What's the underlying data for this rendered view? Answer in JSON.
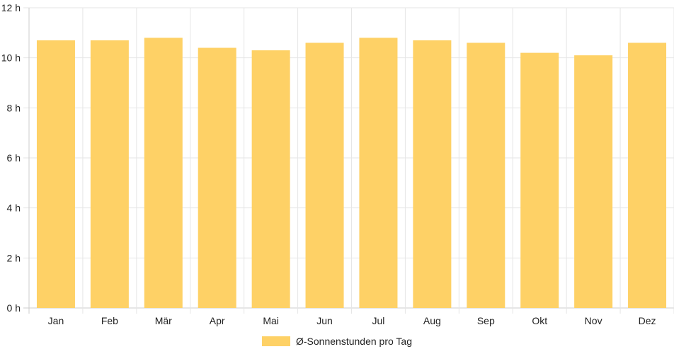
{
  "chart_data": {
    "type": "bar",
    "categories": [
      "Jan",
      "Feb",
      "Mär",
      "Apr",
      "Mai",
      "Jun",
      "Jul",
      "Aug",
      "Sep",
      "Okt",
      "Nov",
      "Dez"
    ],
    "series": [
      {
        "name": "Ø-Sonnenstunden pro Tag",
        "values": [
          10.7,
          10.7,
          10.8,
          10.4,
          10.3,
          10.6,
          10.8,
          10.7,
          10.6,
          10.2,
          10.1,
          10.6
        ],
        "color": "#fed166"
      }
    ],
    "y_ticks": [
      "0 h",
      "2 h",
      "4 h",
      "6 h",
      "8 h",
      "10 h",
      "12 h"
    ],
    "ylim": [
      0,
      12
    ],
    "grid": true,
    "legend": "bottom-center",
    "colors": {
      "grid": "#e6e6e6",
      "axis": "#cccccc",
      "text": "#222222"
    }
  }
}
